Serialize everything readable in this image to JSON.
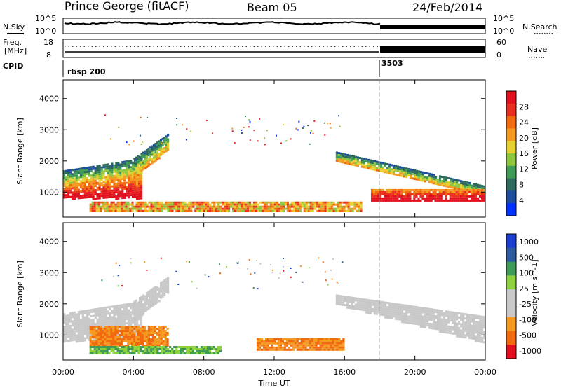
{
  "header": {
    "station": "Prince George (fitACF)",
    "beam": "Beam 05",
    "date": "24/Feb/2014"
  },
  "params": {
    "nsky_label": "N.Sky",
    "nsearch_label": "N.Search",
    "freq_label": "Freq.",
    "freq_unit": "[MHz]",
    "nave_label": "Nave",
    "cpid_label": "CPID",
    "left_top_tick": "10^5",
    "left_bottom_tick": "10^0",
    "right_top_tick": "10^5",
    "right_bottom_tick": "10^0",
    "freq_top": "18",
    "freq_bottom": "8",
    "nave_top": "60",
    "nave_bottom": "0",
    "cpid_values": [
      {
        "label": "rbsp 200",
        "start_hour": 0
      },
      {
        "label": "3503",
        "start_hour": 18
      }
    ]
  },
  "colors": {
    "power": [
      "#0033ff",
      "#1d4f9e",
      "#2e6b5e",
      "#3f9b55",
      "#8ec63f",
      "#e8cf30",
      "#f59a20",
      "#f26a10",
      "#e83020",
      "#e0101e"
    ],
    "velocity": [
      "#e0101e",
      "#f26a10",
      "#f59a20",
      "#c8c8c8",
      "#c8c8c8",
      "#8ed13f",
      "#3f9b55",
      "#2e5a9e",
      "#1d3fcf"
    ]
  },
  "chart_data": [
    {
      "type": "heatmap",
      "quantity": "power",
      "xlabel": "",
      "ylabel": "Slant Range [km]",
      "xlim": [
        0,
        24
      ],
      "ylim": [
        200,
        4600
      ],
      "yticks": [
        "1000",
        "2000",
        "3000",
        "4000"
      ],
      "colorbar_label": "Power [dB]",
      "colorbar_ticks": [
        "4",
        "8",
        "12",
        "16",
        "20",
        "24",
        "28"
      ],
      "colorbar_range": [
        0,
        30
      ],
      "bands": [
        {
          "x": [
            0,
            4.5
          ],
          "y0": [
            820,
            820
          ],
          "y1": [
            1200,
            1450
          ],
          "level": "high"
        },
        {
          "x": [
            0,
            4.5
          ],
          "y0": [
            1200,
            1450
          ],
          "y1": [
            1700,
            2100
          ],
          "level": "mid"
        },
        {
          "x": [
            4.0,
            6.0
          ],
          "y0": [
            1450,
            2400
          ],
          "y1": [
            2100,
            2900
          ],
          "level": "mid"
        },
        {
          "x": [
            15.5,
            24
          ],
          "y0": [
            2000,
            900
          ],
          "y1": [
            2300,
            1200
          ],
          "level": "mid"
        },
        {
          "x": [
            17.5,
            24
          ],
          "y0": [
            750,
            750
          ],
          "y1": [
            1100,
            1100
          ],
          "level": "high"
        },
        {
          "x": [
            1.5,
            17.0
          ],
          "y0": [
            400,
            400
          ],
          "y1": [
            700,
            700
          ],
          "level": "low"
        }
      ]
    },
    {
      "type": "heatmap",
      "quantity": "velocity",
      "xlabel": "Time UT",
      "ylabel": "Slant Range [km]",
      "xlim": [
        0,
        24
      ],
      "ylim": [
        200,
        4600
      ],
      "xticks": [
        "00:00",
        "04:00",
        "08:00",
        "12:00",
        "16:00",
        "20:00",
        "00:00"
      ],
      "yticks": [
        "1000",
        "2000",
        "3000",
        "4000"
      ],
      "colorbar_label": "Velocity [m s^-1]",
      "colorbar_ticks": [
        "1000",
        "500",
        "100",
        "25",
        "-25",
        "-100",
        "-500",
        "-1000"
      ],
      "bands": [
        {
          "x": [
            0,
            4.5
          ],
          "y0": [
            820,
            820
          ],
          "y1": [
            1700,
            2100
          ],
          "level": "gs"
        },
        {
          "x": [
            4.0,
            6.0
          ],
          "y0": [
            1450,
            2400
          ],
          "y1": [
            2100,
            2900
          ],
          "level": "gs"
        },
        {
          "x": [
            15.5,
            24
          ],
          "y0": [
            2000,
            750
          ],
          "y1": [
            2300,
            1600
          ],
          "level": "gs"
        },
        {
          "x": [
            1.5,
            6.0
          ],
          "y0": [
            650,
            650
          ],
          "y1": [
            1300,
            1300
          ],
          "level": "neg"
        },
        {
          "x": [
            1.5,
            9.0
          ],
          "y0": [
            400,
            400
          ],
          "y1": [
            650,
            650
          ],
          "level": "pos"
        },
        {
          "x": [
            11.0,
            16.0
          ],
          "y0": [
            500,
            500
          ],
          "y1": [
            900,
            900
          ],
          "level": "neg"
        }
      ]
    }
  ]
}
